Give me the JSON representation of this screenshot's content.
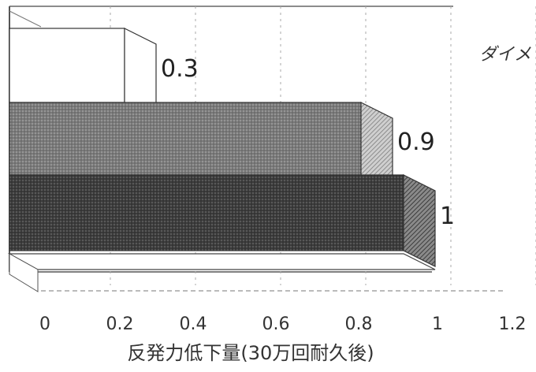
{
  "chart_data": {
    "type": "bar",
    "orientation": "horizontal",
    "three_d": true,
    "categories": [
      "",
      "",
      ""
    ],
    "values": [
      0.3,
      0.9,
      1
    ],
    "value_labels": [
      "0.3",
      "0.9",
      "1"
    ],
    "xlabel": "反発力低下量(30万回耐久後)",
    "x_ticks": [
      "0",
      "0.2",
      "0.4",
      "0.6",
      "0.8",
      "1",
      "1.2"
    ],
    "xlim": [
      0,
      1.2
    ],
    "legend_partial_text": "ダイメ",
    "grid": true,
    "colors": {
      "bar_0": "#ffffff",
      "bar_1": "#8a8a8a",
      "bar_2": "#4a4a4a",
      "edge": "#333333"
    }
  }
}
